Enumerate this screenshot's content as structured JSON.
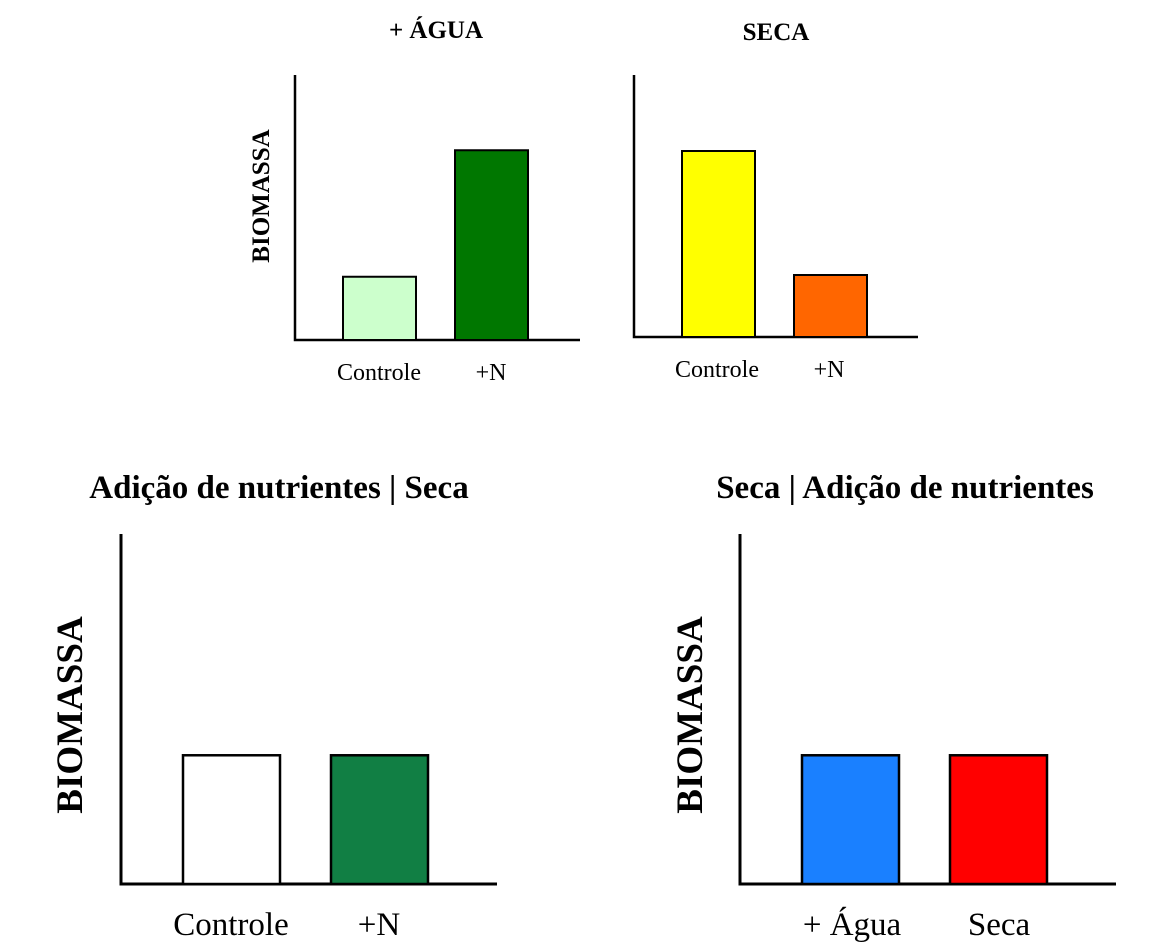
{
  "chart_data": [
    {
      "type": "bar",
      "title": "+ ÁGUA",
      "ylabel": "BIOMASSA",
      "xlabel": "",
      "categories": [
        "Controle",
        "+N"
      ],
      "values": [
        1,
        3
      ],
      "colors": [
        "#ccffcc",
        "#007700"
      ],
      "ylim": [
        0,
        4
      ],
      "grid": false,
      "legend": "none"
    },
    {
      "type": "bar",
      "title": "SECA",
      "ylabel": "",
      "xlabel": "",
      "categories": [
        "Controle",
        "+N"
      ],
      "values": [
        3,
        1
      ],
      "colors": [
        "#ffff00",
        "#ff6600"
      ],
      "ylim": [
        0,
        4
      ],
      "grid": false,
      "legend": "none"
    },
    {
      "type": "bar",
      "title": "Adição de nutrientes | Seca",
      "ylabel": "BIOMASSA",
      "xlabel": "",
      "categories": [
        "Controle",
        "+N"
      ],
      "values": [
        2,
        2
      ],
      "colors": [
        "#ffffff",
        "#117f44"
      ],
      "ylim": [
        0,
        5.5
      ],
      "grid": false,
      "legend": "none"
    },
    {
      "type": "bar",
      "title": "Seca | Adição de nutrientes",
      "ylabel": "BIOMASSA",
      "xlabel": "",
      "categories": [
        "+ Água",
        "Seca"
      ],
      "values": [
        2,
        2
      ],
      "colors": [
        "#1a80ff",
        "#ff0000"
      ],
      "ylim": [
        0,
        5.5
      ],
      "grid": false,
      "legend": "none"
    }
  ]
}
